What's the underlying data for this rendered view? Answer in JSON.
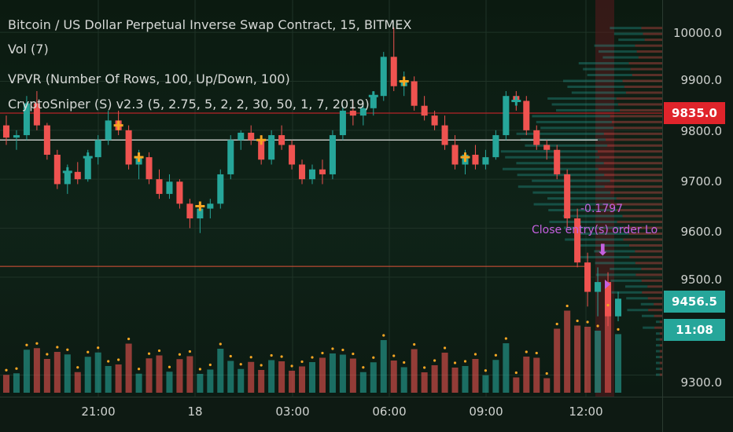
{
  "legend": {
    "title": "Bitcoin / US Dollar Perpetual Inverse Swap Contract, 15, BITMEX",
    "vol": "Vol (7)",
    "vpvr": "VPVR (Number Of Rows, 100, Up/Down, 100)",
    "sniper": "CryptoSniper (S) v2.3 (5, 2.75, 5, 2, 2, 30, 50, 1, 7, 2019)"
  },
  "price_axis": {
    "ticks": [
      "10000.0",
      "9900.0",
      "9800.0",
      "9700.0",
      "9600.0",
      "9500.0",
      "9300.0"
    ],
    "line_tag": {
      "value": "9835.0",
      "color": "#e0242b"
    },
    "last_tag": {
      "value": "9456.5",
      "color": "#26a69a"
    },
    "timer_tag": {
      "value": "11:08",
      "color": "#26a69a"
    }
  },
  "time_axis": {
    "ticks": [
      "21:00",
      "18",
      "03:00",
      "06:00",
      "09:00",
      "12:00"
    ]
  },
  "annotations": {
    "value": "-0.1797",
    "order": "Close entry(s) order Lo"
  },
  "colors": {
    "up": "#26a69a",
    "down": "#ef5350",
    "marker": "#f5a623",
    "annotation": "#c560e0"
  },
  "chart_data": {
    "type": "candlestick",
    "symbol": "BTCUSD Perpetual",
    "exchange": "BITMEX",
    "interval": "15",
    "ylim": [
      9280,
      10050
    ],
    "candles": [
      [
        9810,
        9830,
        9770,
        9785
      ],
      [
        9785,
        9800,
        9760,
        9790
      ],
      [
        9790,
        9870,
        9780,
        9855
      ],
      [
        9855,
        9880,
        9800,
        9810
      ],
      [
        9810,
        9815,
        9740,
        9750
      ],
      [
        9750,
        9760,
        9680,
        9690
      ],
      [
        9690,
        9730,
        9670,
        9715
      ],
      [
        9715,
        9735,
        9690,
        9700
      ],
      [
        9700,
        9760,
        9695,
        9745
      ],
      [
        9745,
        9790,
        9730,
        9780
      ],
      [
        9780,
        9840,
        9770,
        9820
      ],
      [
        9820,
        9840,
        9790,
        9800
      ],
      [
        9800,
        9810,
        9720,
        9730
      ],
      [
        9730,
        9760,
        9700,
        9745
      ],
      [
        9745,
        9755,
        9690,
        9700
      ],
      [
        9700,
        9720,
        9660,
        9670
      ],
      [
        9670,
        9710,
        9660,
        9695
      ],
      [
        9695,
        9700,
        9640,
        9650
      ],
      [
        9650,
        9660,
        9600,
        9620
      ],
      [
        9620,
        9650,
        9590,
        9640
      ],
      [
        9640,
        9660,
        9620,
        9650
      ],
      [
        9650,
        9720,
        9640,
        9710
      ],
      [
        9710,
        9790,
        9700,
        9780
      ],
      [
        9780,
        9800,
        9760,
        9795
      ],
      [
        9795,
        9810,
        9770,
        9780
      ],
      [
        9780,
        9790,
        9730,
        9740
      ],
      [
        9740,
        9800,
        9730,
        9790
      ],
      [
        9790,
        9810,
        9760,
        9770
      ],
      [
        9770,
        9780,
        9720,
        9730
      ],
      [
        9730,
        9740,
        9690,
        9700
      ],
      [
        9700,
        9730,
        9690,
        9720
      ],
      [
        9720,
        9740,
        9690,
        9710
      ],
      [
        9710,
        9800,
        9700,
        9790
      ],
      [
        9790,
        9850,
        9780,
        9840
      ],
      [
        9840,
        9860,
        9810,
        9830
      ],
      [
        9830,
        9850,
        9810,
        9845
      ],
      [
        9845,
        9880,
        9830,
        9870
      ],
      [
        9870,
        9960,
        9860,
        9950
      ],
      [
        9950,
        10010,
        9880,
        9890
      ],
      [
        9890,
        9920,
        9870,
        9900
      ],
      [
        9900,
        9910,
        9840,
        9850
      ],
      [
        9850,
        9870,
        9820,
        9830
      ],
      [
        9830,
        9840,
        9800,
        9810
      ],
      [
        9810,
        9830,
        9760,
        9770
      ],
      [
        9770,
        9790,
        9720,
        9730
      ],
      [
        9730,
        9760,
        9710,
        9750
      ],
      [
        9750,
        9770,
        9720,
        9730
      ],
      [
        9730,
        9760,
        9720,
        9745
      ],
      [
        9745,
        9800,
        9740,
        9790
      ],
      [
        9790,
        9880,
        9780,
        9870
      ],
      [
        9870,
        9880,
        9840,
        9860
      ],
      [
        9860,
        9870,
        9790,
        9800
      ],
      [
        9800,
        9810,
        9760,
        9770
      ],
      [
        9770,
        9780,
        9740,
        9760
      ],
      [
        9760,
        9770,
        9700,
        9710
      ],
      [
        9710,
        9720,
        9600,
        9620
      ],
      [
        9620,
        9640,
        9520,
        9530
      ],
      [
        9530,
        9550,
        9440,
        9470
      ],
      [
        9470,
        9520,
        9420,
        9490
      ],
      [
        9490,
        9510,
        9400,
        9420
      ],
      [
        9420,
        9470,
        9410,
        9456
      ]
    ],
    "horizontal_lines": [
      9835,
      9780,
      9522
    ],
    "volume_profile": "visible range"
  }
}
